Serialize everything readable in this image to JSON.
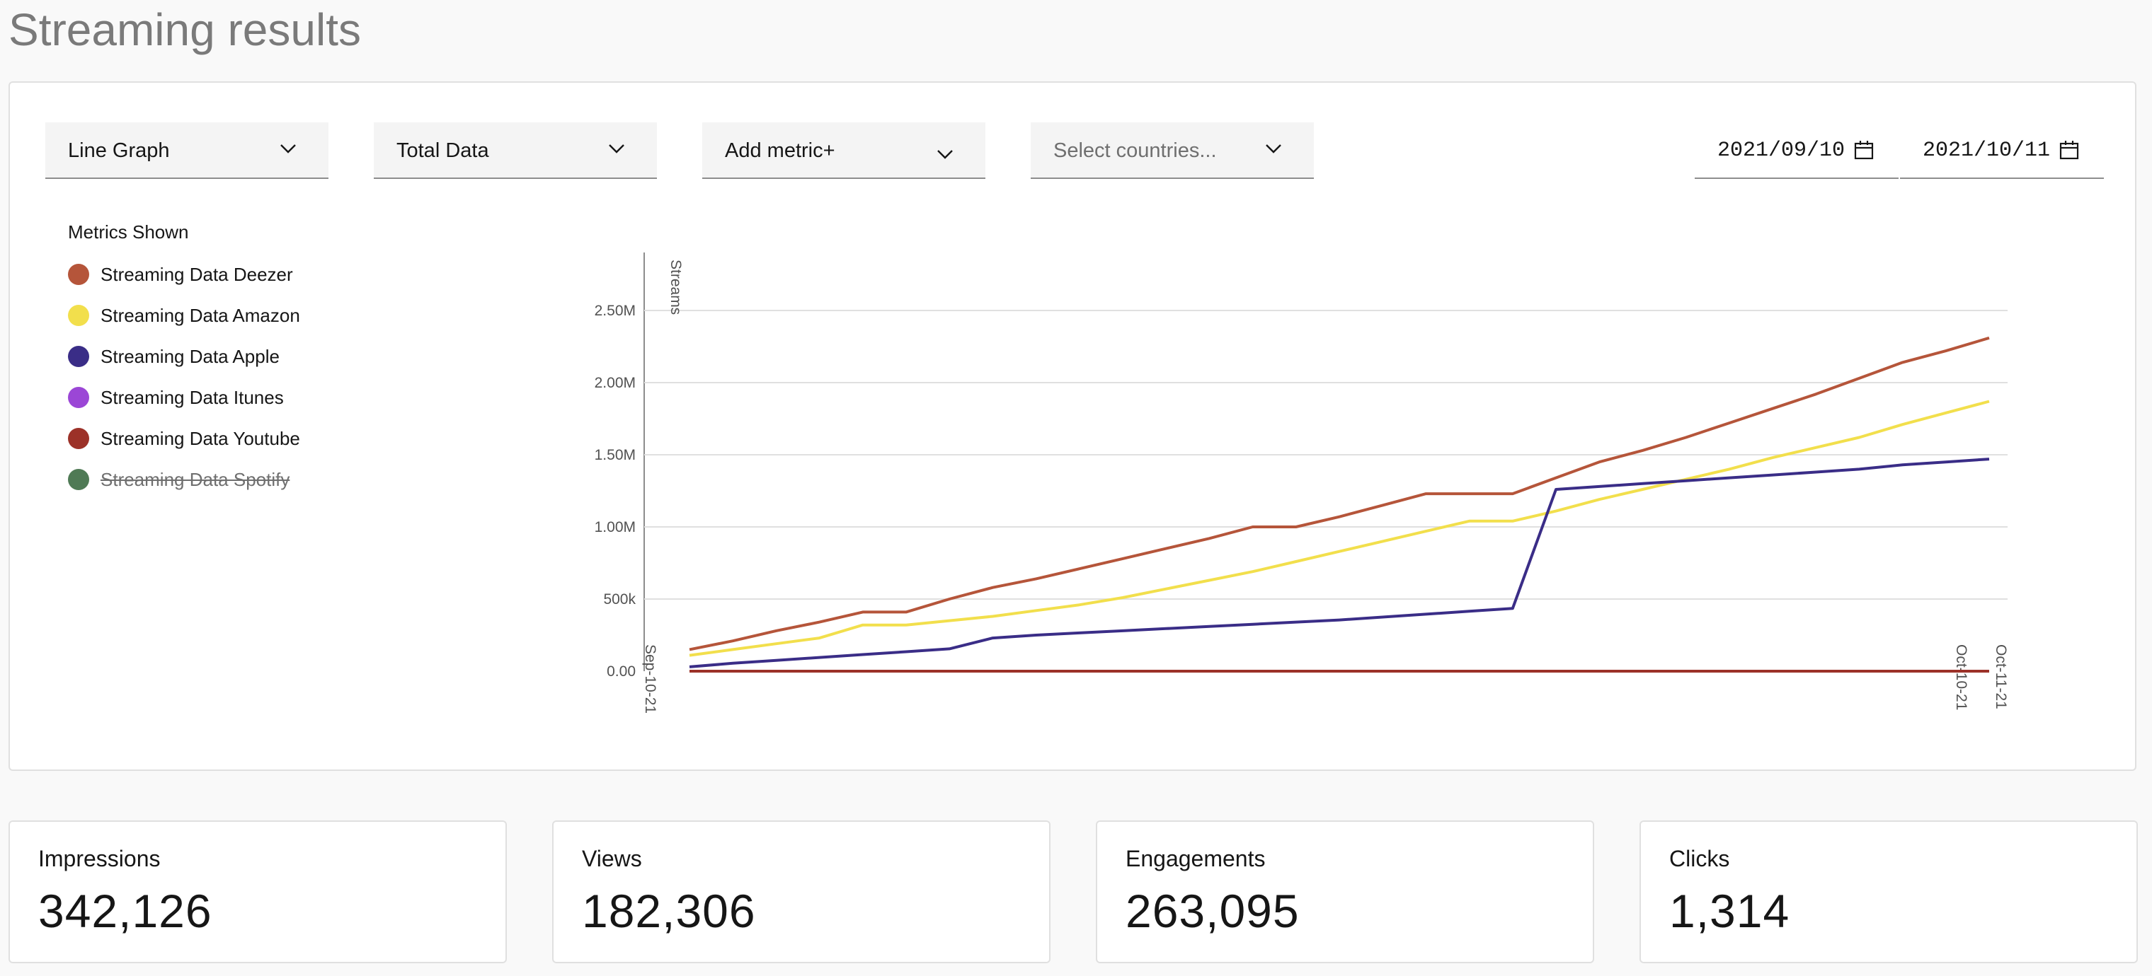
{
  "header": {
    "title": "Streaming results"
  },
  "controls": {
    "chart_type": "Line Graph",
    "data_scope": "Total Data",
    "add_metric": "Add metric+",
    "countries_placeholder": "Select countries...",
    "date_start": "2021/09/10",
    "date_end": "2021/10/11"
  },
  "legend": {
    "title": "Metrics Shown",
    "items": [
      {
        "label": "Streaming Data Deezer",
        "color": "#b5553a",
        "active": true
      },
      {
        "label": "Streaming Data Amazon",
        "color": "#f2df4c",
        "active": true
      },
      {
        "label": "Streaming Data Apple",
        "color": "#3a2d87",
        "active": true
      },
      {
        "label": "Streaming Data Itunes",
        "color": "#9b46d6",
        "active": true
      },
      {
        "label": "Streaming Data Youtube",
        "color": "#9c3128",
        "active": true
      },
      {
        "label": "Streaming Data Spotify",
        "color": "#4f7a55",
        "active": false
      }
    ]
  },
  "chart_data": {
    "type": "line",
    "ylabel": "Streams",
    "ylim": [
      0,
      2750000
    ],
    "y_ticks": [
      {
        "value": 0,
        "label": "0.00"
      },
      {
        "value": 500000,
        "label": "500k"
      },
      {
        "value": 1000000,
        "label": "1.00M"
      },
      {
        "value": 1500000,
        "label": "1.50M"
      },
      {
        "value": 2000000,
        "label": "2.00M"
      },
      {
        "value": 2500000,
        "label": "2.50M"
      }
    ],
    "x_ticks": [
      {
        "index": 0,
        "label": "Sep-10-21"
      },
      {
        "index": 30,
        "label": "Oct-10-21"
      },
      {
        "index": 31,
        "label": "Oct-11-21"
      }
    ],
    "grid": true,
    "series": [
      {
        "name": "Streaming Data Deezer",
        "color": "#b5553a",
        "values": [
          150000,
          210000,
          280000,
          340000,
          410000,
          410000,
          500000,
          580000,
          640000,
          710000,
          780000,
          850000,
          920000,
          1000000,
          1000000,
          1070000,
          1150000,
          1230000,
          1230000,
          1230000,
          1340000,
          1450000,
          1530000,
          1620000,
          1720000,
          1820000,
          1920000,
          2030000,
          2140000,
          2220000,
          2310000
        ]
      },
      {
        "name": "Streaming Data Amazon",
        "color": "#f2df4c",
        "values": [
          110000,
          150000,
          190000,
          230000,
          320000,
          320000,
          350000,
          380000,
          420000,
          460000,
          510000,
          570000,
          630000,
          690000,
          760000,
          830000,
          900000,
          970000,
          1040000,
          1040000,
          1110000,
          1190000,
          1260000,
          1330000,
          1400000,
          1480000,
          1550000,
          1620000,
          1710000,
          1790000,
          1870000
        ]
      },
      {
        "name": "Streaming Data Apple",
        "color": "#3a2d87",
        "values": [
          30000,
          55000,
          75000,
          95000,
          115000,
          135000,
          155000,
          230000,
          250000,
          265000,
          280000,
          295000,
          310000,
          325000,
          340000,
          355000,
          375000,
          395000,
          415000,
          435000,
          1260000,
          1280000,
          1300000,
          1320000,
          1340000,
          1360000,
          1380000,
          1400000,
          1430000,
          1450000,
          1470000
        ]
      },
      {
        "name": "Streaming Data Itunes",
        "color": "#9b46d6",
        "values": [
          0,
          0,
          0,
          0,
          0,
          0,
          0,
          0,
          0,
          0,
          0,
          0,
          0,
          0,
          0,
          0,
          0,
          0,
          0,
          0,
          0,
          0,
          0,
          0,
          0,
          0,
          0,
          0,
          0,
          0,
          0
        ]
      },
      {
        "name": "Streaming Data Youtube",
        "color": "#9c3128",
        "values": [
          0,
          0,
          0,
          0,
          0,
          0,
          0,
          0,
          0,
          0,
          0,
          0,
          0,
          0,
          0,
          0,
          0,
          0,
          0,
          0,
          0,
          0,
          0,
          0,
          0,
          0,
          0,
          0,
          0,
          0,
          0
        ]
      }
    ]
  },
  "metrics": [
    {
      "label": "Impressions",
      "value": "342,126"
    },
    {
      "label": "Views",
      "value": "182,306"
    },
    {
      "label": "Engagements",
      "value": "263,095"
    },
    {
      "label": "Clicks",
      "value": "1,314"
    }
  ],
  "icons": {
    "dropdown": "chevron-down-icon",
    "date": "calendar-icon"
  }
}
